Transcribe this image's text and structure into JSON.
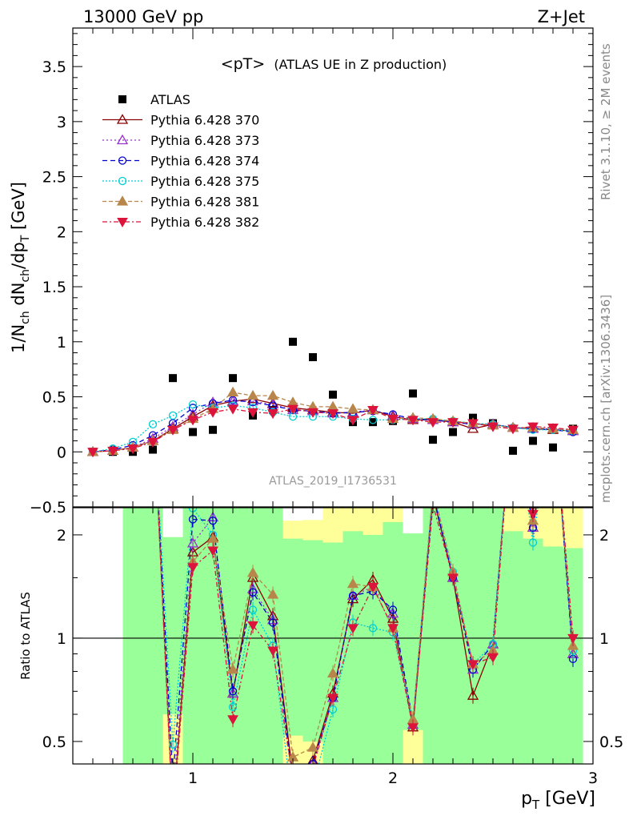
{
  "header": {
    "left": "13000 GeV pp",
    "right": "Z+Jet"
  },
  "side": {
    "rivet": "Rivet 3.1.10, ≥ 2M events",
    "mcplots": "mcplots.cern.ch [arXiv:1306.3436]"
  },
  "watermark": "ATLAS_2019_I1736531",
  "colors": {
    "data": "#000000",
    "band_inner": "#99ff99",
    "band_outer": "#ffff99"
  },
  "chart_data": [
    {
      "type": "scatter",
      "title": "<pT> (ATLAS UE in Z production)",
      "title_main": "<pT>",
      "title_sub": "(ATLAS UE in Z production)",
      "ylabel": "1/N_ch dN_ch/dp_T [GeV]",
      "ylabel_parts": [
        "1/N",
        "ch",
        " dN",
        "ch",
        "/dp",
        "T",
        " [GeV]"
      ],
      "xlim": [
        0.4,
        3.0
      ],
      "ylim": [
        -0.5,
        3.85
      ],
      "yticks": [
        -0.5,
        0,
        0.5,
        1,
        1.5,
        2,
        2.5,
        3,
        3.5
      ],
      "ytick_labels": [
        "−0.5",
        "0",
        "0.5",
        "1",
        "1.5",
        "2",
        "2.5",
        "3",
        "3.5"
      ],
      "legend_position": "top-left",
      "x": [
        0.5,
        0.6,
        0.7,
        0.8,
        0.9,
        1.0,
        1.1,
        1.2,
        1.3,
        1.4,
        1.5,
        1.6,
        1.7,
        1.8,
        1.9,
        2.0,
        2.1,
        2.2,
        2.3,
        2.4,
        2.5,
        2.6,
        2.7,
        2.8,
        2.9
      ],
      "series": [
        {
          "name": "ATLAS",
          "color": "#000000",
          "marker": "square",
          "values": [
            0.0,
            0.0,
            0.0,
            0.02,
            0.67,
            0.18,
            0.2,
            0.67,
            0.33,
            0.38,
            1.0,
            0.86,
            0.52,
            0.27,
            0.27,
            0.28,
            0.53,
            0.11,
            0.18,
            0.31,
            0.26,
            0.01,
            0.1,
            0.04,
            0.21
          ]
        },
        {
          "name": "Pythia 6.428 370",
          "color": "#8b0000",
          "marker": "triangle-open",
          "dash": "",
          "values": [
            0.0,
            0.01,
            0.04,
            0.1,
            0.21,
            0.32,
            0.42,
            0.46,
            0.48,
            0.44,
            0.4,
            0.38,
            0.36,
            0.35,
            0.38,
            0.32,
            0.29,
            0.29,
            0.27,
            0.21,
            0.25,
            0.22,
            0.21,
            0.2,
            0.19
          ]
        },
        {
          "name": "Pythia 6.428 373",
          "color": "#9932cc",
          "marker": "triangle-open",
          "dash": "2,3",
          "values": [
            0.0,
            0.01,
            0.04,
            0.12,
            0.23,
            0.34,
            0.45,
            0.46,
            0.46,
            0.43,
            0.38,
            0.37,
            0.35,
            0.36,
            0.38,
            0.33,
            0.3,
            0.29,
            0.27,
            0.25,
            0.25,
            0.22,
            0.21,
            0.21,
            0.19
          ]
        },
        {
          "name": "Pythia 6.428 374",
          "color": "#0000cd",
          "marker": "circle-open",
          "dash": "6,4",
          "values": [
            0.0,
            0.02,
            0.06,
            0.15,
            0.26,
            0.4,
            0.44,
            0.47,
            0.45,
            0.42,
            0.38,
            0.37,
            0.35,
            0.36,
            0.37,
            0.34,
            0.3,
            0.29,
            0.27,
            0.25,
            0.25,
            0.22,
            0.21,
            0.2,
            0.18
          ]
        },
        {
          "name": "Pythia 6.428 375",
          "color": "#00ced1",
          "marker": "circle-open",
          "dash": "2,2",
          "values": [
            0.0,
            0.03,
            0.09,
            0.25,
            0.33,
            0.43,
            0.4,
            0.42,
            0.4,
            0.36,
            0.32,
            0.32,
            0.32,
            0.3,
            0.29,
            0.29,
            0.3,
            0.3,
            0.28,
            0.26,
            0.25,
            0.22,
            0.2,
            0.2,
            0.19
          ]
        },
        {
          "name": "Pythia 6.428 381",
          "color": "#b8864b",
          "marker": "triangle-filled",
          "dash": "5,3",
          "values": [
            0.0,
            0.01,
            0.04,
            0.1,
            0.2,
            0.3,
            0.39,
            0.54,
            0.51,
            0.51,
            0.45,
            0.41,
            0.41,
            0.39,
            0.38,
            0.3,
            0.31,
            0.3,
            0.28,
            0.26,
            0.24,
            0.22,
            0.22,
            0.21,
            0.2
          ]
        },
        {
          "name": "Pythia 6.428 382",
          "color": "#dc143c",
          "marker": "triangle-down-filled",
          "dash": "6,3,2,3",
          "values": [
            0.0,
            0.01,
            0.03,
            0.09,
            0.2,
            0.29,
            0.36,
            0.39,
            0.36,
            0.35,
            0.39,
            0.36,
            0.35,
            0.29,
            0.38,
            0.3,
            0.29,
            0.27,
            0.27,
            0.26,
            0.23,
            0.21,
            0.23,
            0.22,
            0.2
          ]
        }
      ]
    },
    {
      "type": "line",
      "title": "",
      "xlabel": "p_T [GeV]",
      "xlabel_parts": [
        "p",
        "T",
        " [GeV]"
      ],
      "ylabel": "Ratio to ATLAS",
      "scale": "log",
      "xlim": [
        0.4,
        3.0
      ],
      "ylim": [
        0.43,
        2.4
      ],
      "xticks": [
        1,
        2,
        3
      ],
      "xtick_labels": [
        "1",
        "2",
        "3"
      ],
      "yticks": [
        0.5,
        1,
        2
      ],
      "ytick_labels": [
        "0.5",
        "1",
        "2"
      ],
      "reference_line": 1.0,
      "band_inner": [
        {
          "x": [
            0.65,
            2.95
          ],
          "lo": 0.43,
          "hi": 2.4
        }
      ],
      "band_outer_patches": [
        {
          "x": [
            0.85,
            0.95
          ],
          "lo": 0.43,
          "hi": 0.6
        },
        {
          "x": [
            1.45,
            1.55
          ],
          "lo": 0.43,
          "hi": 0.52
        },
        {
          "x": [
            1.55,
            1.65
          ],
          "lo": 0.43,
          "hi": 0.5
        },
        {
          "x": [
            2.05,
            2.15
          ],
          "lo": 0.43,
          "hi": 0.54
        },
        {
          "x": [
            1.45,
            1.55
          ],
          "lo": 1.95,
          "hi": 2.4
        },
        {
          "x": [
            1.55,
            1.65
          ],
          "lo": 1.93,
          "hi": 2.4
        },
        {
          "x": [
            1.65,
            1.75
          ],
          "lo": 1.9,
          "hi": 2.4
        },
        {
          "x": [
            1.75,
            1.85
          ],
          "lo": 2.05,
          "hi": 2.4
        },
        {
          "x": [
            1.85,
            1.95
          ],
          "lo": 2.0,
          "hi": 2.4
        },
        {
          "x": [
            1.95,
            2.05
          ],
          "lo": 2.18,
          "hi": 2.4
        },
        {
          "x": [
            2.55,
            2.65
          ],
          "lo": 2.05,
          "hi": 2.4
        },
        {
          "x": [
            2.65,
            2.75
          ],
          "lo": 1.95,
          "hi": 2.4
        },
        {
          "x": [
            2.75,
            2.85
          ],
          "lo": 1.85,
          "hi": 2.4
        },
        {
          "x": [
            2.85,
            2.95
          ],
          "lo": 1.83,
          "hi": 2.4
        }
      ],
      "band_white_patches": [
        {
          "x": [
            0.85,
            0.95
          ],
          "lo": 1.97,
          "hi": 2.4
        },
        {
          "x": [
            1.45,
            1.55
          ],
          "lo": 2.2,
          "hi": 2.4
        },
        {
          "x": [
            1.55,
            1.65
          ],
          "lo": 2.21,
          "hi": 2.4
        },
        {
          "x": [
            2.05,
            2.15
          ],
          "lo": 2.02,
          "hi": 2.4
        }
      ],
      "x": [
        0.5,
        0.6,
        0.7,
        0.8,
        0.9,
        1.0,
        1.1,
        1.2,
        1.3,
        1.4,
        1.5,
        1.6,
        1.7,
        1.8,
        1.9,
        2.0,
        2.1,
        2.2,
        2.3,
        2.4,
        2.5,
        2.6,
        2.7,
        2.8,
        2.9
      ],
      "series": [
        {
          "name": "Pythia 6.428 370",
          "values": [
            null,
            null,
            null,
            5.0,
            0.31,
            1.78,
            1.97,
            0.69,
            1.5,
            1.16,
            0.4,
            0.44,
            0.69,
            1.3,
            1.48,
            1.14,
            0.55,
            2.6,
            1.5,
            0.68,
            0.96,
            5.0,
            2.1,
            5.0,
            0.9
          ]
        },
        {
          "name": "Pythia 6.428 373",
          "values": [
            null,
            null,
            null,
            5.0,
            0.34,
            1.89,
            2.25,
            0.69,
            1.39,
            1.13,
            0.38,
            0.43,
            0.67,
            1.33,
            1.41,
            1.18,
            0.56,
            2.64,
            1.5,
            0.81,
            0.96,
            5.0,
            2.1,
            5.0,
            0.9
          ]
        },
        {
          "name": "Pythia 6.428 374",
          "values": [
            null,
            null,
            null,
            5.0,
            0.39,
            2.22,
            2.2,
            0.7,
            1.36,
            1.11,
            0.38,
            0.43,
            0.67,
            1.33,
            1.37,
            1.21,
            0.57,
            2.64,
            1.5,
            0.81,
            0.96,
            5.0,
            2.1,
            5.0,
            0.87
          ]
        },
        {
          "name": "Pythia 6.428 375",
          "values": [
            null,
            null,
            null,
            5.0,
            0.49,
            2.39,
            2.0,
            0.63,
            1.21,
            0.95,
            0.32,
            0.37,
            0.62,
            1.11,
            1.07,
            1.04,
            0.57,
            2.72,
            1.56,
            0.84,
            0.96,
            5.0,
            1.9,
            5.0,
            0.92
          ]
        },
        {
          "name": "Pythia 6.428 381",
          "values": [
            null,
            null,
            null,
            5.0,
            0.3,
            1.67,
            1.95,
            0.81,
            1.55,
            1.34,
            0.45,
            0.48,
            0.79,
            1.44,
            1.41,
            1.07,
            0.58,
            2.72,
            1.56,
            0.84,
            0.92,
            5.0,
            2.2,
            5.0,
            0.95
          ]
        },
        {
          "name": "Pythia 6.428 382",
          "values": [
            null,
            null,
            null,
            5.0,
            0.3,
            1.61,
            1.8,
            0.58,
            1.09,
            0.92,
            0.39,
            0.42,
            0.67,
            1.07,
            1.41,
            1.07,
            0.55,
            2.45,
            1.5,
            0.84,
            0.88,
            5.0,
            2.3,
            5.0,
            1.0
          ]
        }
      ]
    }
  ]
}
